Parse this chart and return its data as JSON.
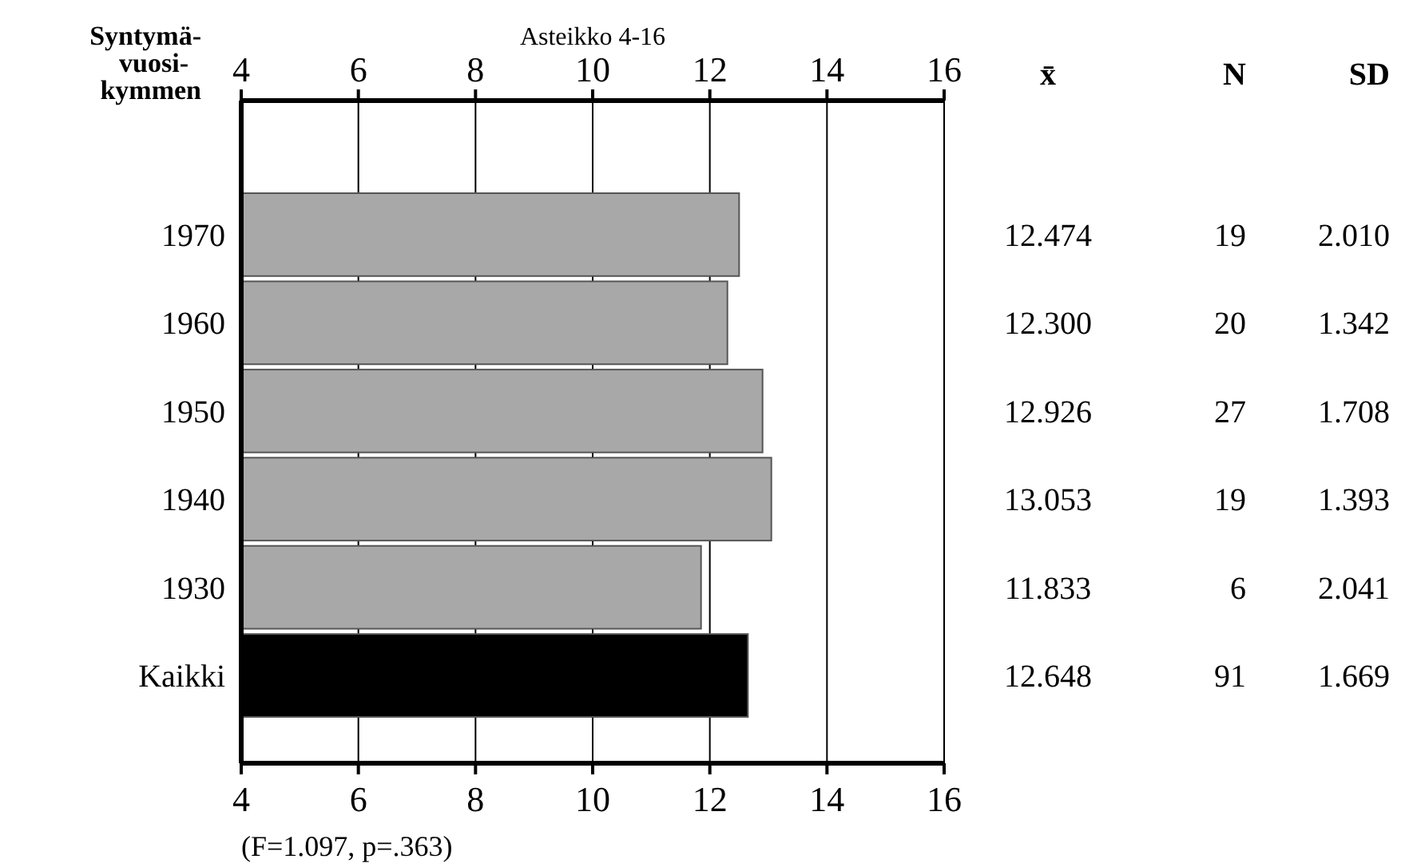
{
  "chart_data": [
    {
      "type": "bar",
      "orientation": "horizontal",
      "title": "Asteikko 4-16",
      "ylabel": "Syntymä- vuosi- kymmen",
      "categories": [
        "1970",
        "1960",
        "1950",
        "1940",
        "1930",
        "Kaikki"
      ],
      "values": [
        12.5,
        12.3,
        12.9,
        13.05,
        11.85,
        12.65
      ],
      "colors": [
        "#a8a8a8",
        "#a8a8a8",
        "#a8a8a8",
        "#a8a8a8",
        "#a8a8a8",
        "#000000"
      ],
      "xlim": [
        4,
        16
      ],
      "xticks": [
        4,
        6,
        8,
        10,
        12,
        14,
        16
      ],
      "x2lim": [
        4,
        16
      ],
      "x2ticks": [
        4,
        6,
        8,
        10,
        12,
        14,
        16
      ],
      "grid": "x",
      "annotations": [
        "(F=1.097, p=.363)"
      ]
    },
    {
      "type": "other",
      "annotations": [
        "x̄",
        "N",
        "SD",
        "12.474",
        "19",
        "2.010",
        "12.300",
        "20",
        "1.342",
        "12.926",
        "27",
        "1.708",
        "13.053",
        "19",
        "1.393",
        "11.833",
        "6",
        "2.041",
        "12.648",
        "91",
        "1.669"
      ]
    }
  ]
}
